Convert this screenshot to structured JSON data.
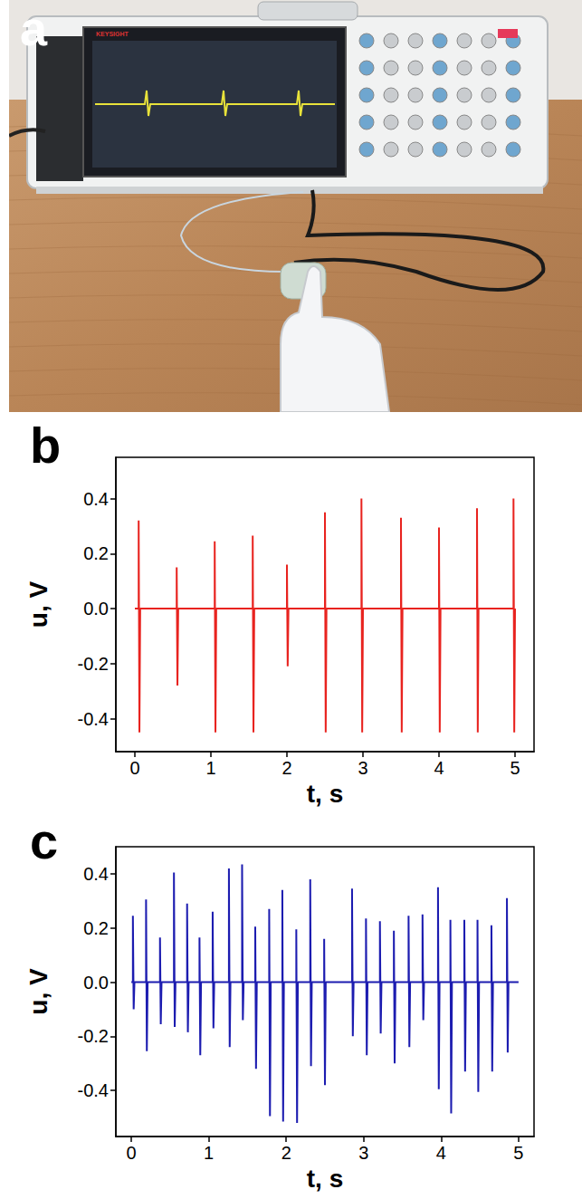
{
  "photo": {
    "label": "a",
    "brand": "KEYSIGHT"
  },
  "chart_data": [
    {
      "type": "line",
      "title": "b",
      "x_label": "t, s",
      "y_label": "u, V",
      "color": "#e8231f",
      "grid": false,
      "xlim": [
        -0.25,
        5.25
      ],
      "xticks": [
        0,
        1,
        2,
        3,
        4,
        5
      ],
      "ylim": [
        -0.52,
        0.55
      ],
      "yticks": [
        -0.4,
        -0.2,
        {
          "value": 0,
          "label": "0.0"
        },
        0.2,
        0.4
      ],
      "x": [
        0,
        0.05,
        0.05,
        0.06,
        0.07,
        0.55,
        0.55,
        0.56,
        0.57,
        1.05,
        1.05,
        1.06,
        1.07,
        1.55,
        1.55,
        1.56,
        1.57,
        2.0,
        2.0,
        2.01,
        2.02,
        2.5,
        2.5,
        2.51,
        2.52,
        2.98,
        2.98,
        2.99,
        3.0,
        3.5,
        3.5,
        3.51,
        3.52,
        4.0,
        4.0,
        4.01,
        4.02,
        4.5,
        4.5,
        4.51,
        4.52,
        4.98,
        4.98,
        4.99,
        5.0
      ],
      "values": [
        0,
        0,
        0.32,
        -0.45,
        0,
        0,
        0.15,
        -0.28,
        0,
        0,
        0.245,
        -0.45,
        0,
        0,
        0.265,
        -0.45,
        0,
        0,
        0.16,
        -0.21,
        0,
        0,
        0.35,
        -0.45,
        0,
        0,
        0.4,
        -0.45,
        0,
        0,
        0.33,
        -0.45,
        0,
        0,
        0.295,
        -0.45,
        0,
        0,
        0.365,
        -0.45,
        0,
        0,
        0.4,
        -0.45,
        0
      ]
    },
    {
      "type": "line",
      "title": "c",
      "x_label": "t, s",
      "y_label": "u, V",
      "color": "#1c1cb0",
      "grid": false,
      "xlim": [
        -0.2,
        5.2
      ],
      "xticks": [
        0,
        1,
        2,
        3,
        4,
        5
      ],
      "ylim": [
        -0.57,
        0.5
      ],
      "yticks": [
        -0.4,
        -0.2,
        {
          "value": 0,
          "label": "0.0"
        },
        0.2,
        0.4
      ],
      "x": [
        0,
        0.02,
        0.02,
        0.03,
        0.04,
        0.19,
        0.19,
        0.2,
        0.21,
        0.37,
        0.37,
        0.38,
        0.39,
        0.55,
        0.55,
        0.56,
        0.57,
        0.72,
        0.72,
        0.73,
        0.74,
        0.88,
        0.88,
        0.89,
        0.9,
        1.05,
        1.05,
        1.06,
        1.07,
        1.26,
        1.26,
        1.27,
        1.28,
        1.43,
        1.43,
        1.44,
        1.45,
        1.6,
        1.6,
        1.61,
        1.62,
        1.78,
        1.78,
        1.79,
        1.8,
        1.95,
        1.95,
        1.96,
        1.97,
        2.13,
        2.13,
        2.14,
        2.15,
        2.31,
        2.31,
        2.32,
        2.33,
        2.49,
        2.49,
        2.5,
        2.51,
        2.85,
        2.85,
        2.86,
        2.87,
        3.03,
        3.03,
        3.04,
        3.05,
        3.21,
        3.21,
        3.22,
        3.23,
        3.39,
        3.39,
        3.4,
        3.41,
        3.58,
        3.58,
        3.59,
        3.6,
        3.76,
        3.76,
        3.77,
        3.78,
        3.96,
        3.96,
        3.97,
        3.98,
        4.12,
        4.12,
        4.13,
        4.14,
        4.3,
        4.3,
        4.31,
        4.32,
        4.47,
        4.47,
        4.48,
        4.49,
        4.65,
        4.65,
        4.66,
        4.67,
        4.85,
        4.85,
        4.86,
        4.87,
        5.0
      ],
      "values": [
        0,
        0,
        0.245,
        -0.1,
        0,
        0,
        0.305,
        -0.255,
        0,
        0,
        0.165,
        -0.155,
        0,
        0,
        0.405,
        -0.165,
        0,
        0,
        0.29,
        -0.185,
        0,
        0,
        0.165,
        -0.27,
        0,
        0,
        0.26,
        -0.17,
        0,
        0,
        0.42,
        -0.24,
        0,
        0,
        0.435,
        -0.14,
        0,
        0,
        0.205,
        -0.32,
        0,
        0,
        0.27,
        -0.495,
        0,
        0,
        0.34,
        -0.515,
        0,
        0,
        0.195,
        -0.52,
        0,
        0,
        0.38,
        -0.31,
        0,
        0,
        0.16,
        -0.38,
        0,
        0,
        0.345,
        -0.2,
        0,
        0,
        0.235,
        -0.27,
        0,
        0,
        0.225,
        -0.19,
        0,
        0,
        0.19,
        -0.3,
        0,
        0,
        0.245,
        -0.24,
        0,
        0,
        0.25,
        -0.14,
        0,
        0,
        0.35,
        -0.395,
        0,
        0,
        0.23,
        -0.485,
        0,
        0,
        0.23,
        -0.33,
        0,
        0,
        0.23,
        -0.405,
        0,
        0,
        0.21,
        -0.33,
        0,
        0,
        0.31,
        -0.26,
        0,
        0
      ]
    }
  ]
}
